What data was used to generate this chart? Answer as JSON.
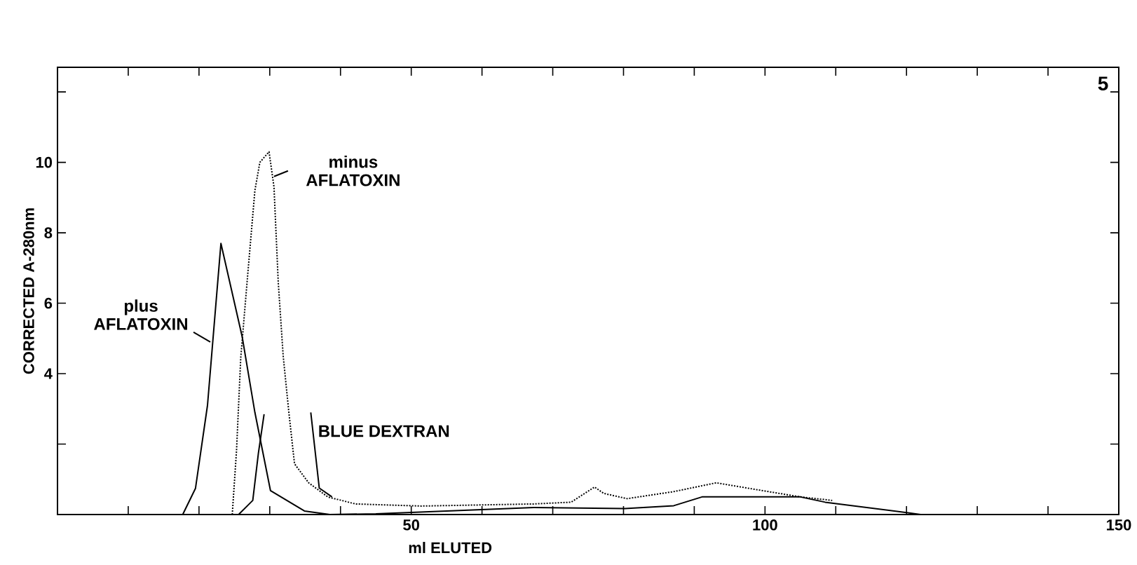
{
  "chart_data": {
    "type": "line",
    "xlabel": "ml ELUTED",
    "ylabel": "CORRECTED A-280nm",
    "xlim": [
      0,
      150
    ],
    "ylim": [
      0,
      12.7
    ],
    "xticks": [
      {
        "value": 10,
        "label": null
      },
      {
        "value": 20,
        "label": null
      },
      {
        "value": 30,
        "label": null
      },
      {
        "value": 40,
        "label": null
      },
      50,
      {
        "value": 60,
        "label": null
      },
      {
        "value": 70,
        "label": null
      },
      {
        "value": 80,
        "label": null
      },
      {
        "value": 90,
        "label": null
      },
      100,
      {
        "value": 110,
        "label": null
      },
      {
        "value": 120,
        "label": null
      },
      {
        "value": 130,
        "label": null
      },
      {
        "value": 140,
        "label": null
      },
      150
    ],
    "yticks": [
      {
        "value": 2,
        "label": null
      },
      4,
      6,
      8,
      10,
      {
        "value": 12,
        "label": null
      }
    ],
    "grid": false,
    "marker": "none",
    "series": [
      {
        "color": "#000000",
        "line_style": "solid",
        "x": [
          17.7,
          19.5,
          21.2,
          23.1,
          26.1,
          27.9,
          30.1,
          34.9,
          38.5,
          45,
          55,
          67.3,
          80.2,
          87.1,
          91.1,
          105,
          108.5,
          120.2,
          122
        ],
        "values": [
          0,
          0.74,
          3.1,
          7.7,
          5.05,
          2.9,
          0.68,
          0.1,
          0,
          0.02,
          0.1,
          0.2,
          0.17,
          0.25,
          0.5,
          0.5,
          0.35,
          0.05,
          0
        ]
      },
      {
        "color": "#000000",
        "line_style": "dotted",
        "x": [
          24.7,
          25.3,
          25.9,
          26.9,
          27.9,
          28.6,
          29.9,
          30.6,
          31.2,
          31.9,
          32.7,
          33.5,
          35.5,
          38.2,
          42.1,
          51.4,
          67.3,
          72.6,
          75.9,
          77.2,
          80.5,
          87.1,
          93.1,
          99,
          105,
          109.5
        ],
        "values": [
          0,
          1.8,
          4.45,
          6.85,
          9.2,
          10.0,
          10.3,
          9.3,
          6.6,
          4.5,
          2.9,
          1.44,
          0.9,
          0.5,
          0.3,
          0.24,
          0.3,
          0.35,
          0.78,
          0.6,
          0.45,
          0.65,
          0.9,
          0.7,
          0.5,
          0.4
        ]
      },
      {
        "color": "#000000",
        "line_style": "solid",
        "x": [
          25.6,
          27.6,
          28.4,
          29.2
        ],
        "values": [
          0,
          0.4,
          1.75,
          2.85
        ]
      },
      {
        "color": "#000000",
        "line_style": "solid",
        "x": [
          35.8,
          37.0,
          38.8
        ],
        "values": [
          2.9,
          0.75,
          0.5
        ]
      }
    ],
    "annotations": [
      {
        "text": "plus AFLATOXIN",
        "x": 21.6,
        "y": 4.9
      },
      {
        "text": "minus AFLATOXIN",
        "x": 30.6,
        "y": 9.6
      },
      {
        "text": "BLUE DEXTRAN",
        "x": 35.8,
        "y": 2.9
      },
      "5"
    ]
  }
}
